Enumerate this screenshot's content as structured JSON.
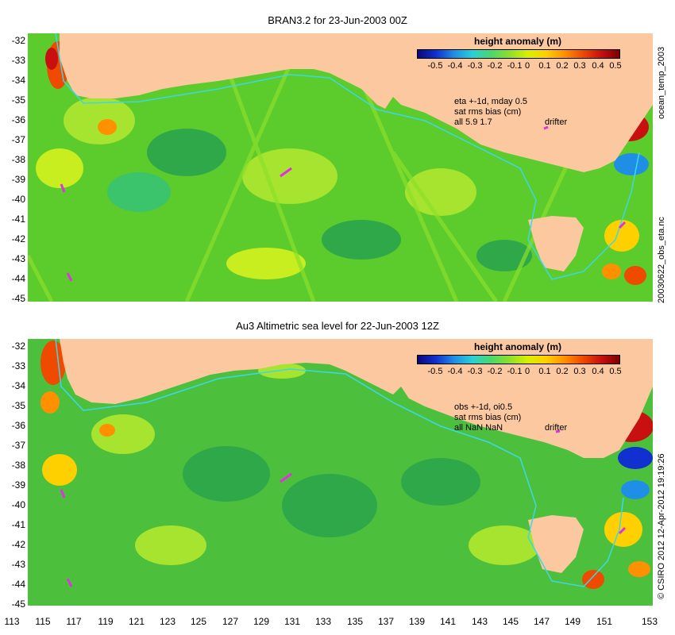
{
  "top_panel": {
    "title": "BRAN3.2 for 23-Jun-2003 00Z",
    "notes": [
      "eta +-1d, mday 0.5",
      "sat rms bias (cm)",
      "all 5.9 1.7"
    ],
    "drifter_label": "drifter",
    "right_labels": [
      "ocean_temp_2003",
      "20030622_obs_eta.nc"
    ]
  },
  "bottom_panel": {
    "title": "Au3 Altimetric sea level  for 22-Jun-2003 12Z",
    "notes": [
      "obs +-1d, oi0.5",
      "sat rms bias (cm)",
      "all NaN NaN"
    ],
    "drifter_label": "drifter",
    "right_labels": [
      "© CSIRO 2012  12-Apr-2012 19:19:26"
    ]
  },
  "legend": {
    "title": "height anomaly (m)",
    "ticks": [
      "-0.5",
      "-0.4",
      "-0.3",
      "-0.2",
      "-0.1",
      "0",
      "0.1",
      "0.2",
      "0.3",
      "0.4",
      "0.5"
    ]
  },
  "axes": {
    "lat_ticks": [
      "-32",
      "-33",
      "-34",
      "-35",
      "-36",
      "-37",
      "-38",
      "-39",
      "-40",
      "-41",
      "-42",
      "-43",
      "-44",
      "-45"
    ],
    "lon_ticks": [
      "113",
      "115",
      "117",
      "119",
      "121",
      "123",
      "125",
      "127",
      "129",
      "131",
      "133",
      "135",
      "137",
      "139",
      "141",
      "143",
      "145",
      "147",
      "149",
      "151",
      "153"
    ],
    "lon_range": [
      113,
      153
    ],
    "lat_range": [
      -45,
      -31.5
    ]
  },
  "colors": {
    "land": "#fcc8a0",
    "ocean_base": "#5ccb2c",
    "ocean_light": "#a6e430",
    "ocean_dark": "#2fa84a",
    "current_line": "#3ed7e8",
    "drifter": "#e030e0"
  }
}
